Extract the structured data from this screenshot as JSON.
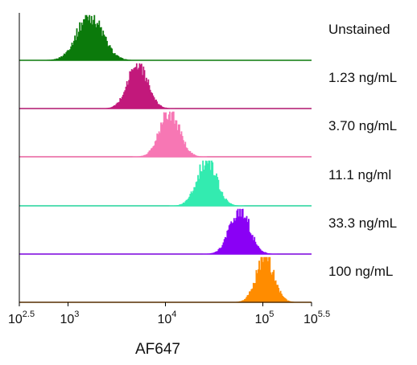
{
  "chart_data": {
    "type": "histogram_overlay_stacked",
    "xlabel": "AF647",
    "x_scale": "log10",
    "xlim_log10": [
      2.5,
      5.5
    ],
    "xticks": [
      {
        "base": "10",
        "exp": "2.5",
        "value_log10": 2.5
      },
      {
        "base": "10",
        "exp": "3",
        "value_log10": 3
      },
      {
        "base": "10",
        "exp": "4",
        "value_log10": 4
      },
      {
        "base": "10",
        "exp": "5",
        "value_log10": 5
      },
      {
        "base": "10",
        "exp": "5.5",
        "value_log10": 5.5
      }
    ],
    "grid": false,
    "series": [
      {
        "name": "Unstained",
        "color": "#0b7a0b",
        "baseline_color": "#0b7a0b",
        "peak_log10": 3.22,
        "width_log10": 0.13
      },
      {
        "name": "1.23 ng/mL",
        "color": "#c2187b",
        "baseline_color": "#b0176f",
        "peak_log10": 3.71,
        "width_log10": 0.1
      },
      {
        "name": "3.70 ng/mL",
        "color": "#f777b4",
        "baseline_color": "#e8609e",
        "peak_log10": 4.04,
        "width_log10": 0.1
      },
      {
        "name": "11.1 ng/ml",
        "color": "#33ebb0",
        "baseline_color": "#22d39c",
        "peak_log10": 4.42,
        "width_log10": 0.1
      },
      {
        "name": "33.3 ng/mL",
        "color": "#8a00f5",
        "baseline_color": "#7a00dd",
        "peak_log10": 4.76,
        "width_log10": 0.1
      },
      {
        "name": "100 ng/mL",
        "color": "#ff8c00",
        "baseline_color": "#ff8c00",
        "peak_log10": 5.02,
        "width_log10": 0.09
      }
    ]
  }
}
